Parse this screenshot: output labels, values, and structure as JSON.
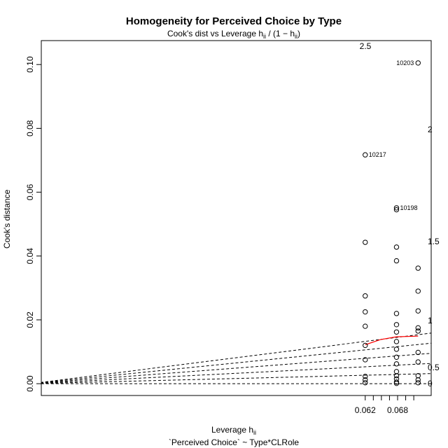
{
  "chart_data": {
    "type": "scatter",
    "title": "Homogeneity for Perceived Choice by Type",
    "subtitle": "Cook's dist vs Leverage  h",
    "subtitle_sub": "ii",
    "subtitle_formula_open": " / (1 − h",
    "subtitle_formula_close": ")",
    "xlabel": "Leverage  h",
    "xlabel_sub": "ii",
    "model_formula": "`Perceived Choice` ~ Type*CLRole",
    "ylabel": "Cook's distance",
    "xlim": [
      0,
      0.0725
    ],
    "ylim": [
      -0.004,
      0.1075
    ],
    "x_ticks": [
      0.062,
      0.068
    ],
    "x_tick_labels": [
      "0.062",
      "0.068"
    ],
    "x_minor_ticks": [
      0.0635,
      0.065,
      0.0665,
      0.0695,
      0.071
    ],
    "y_ticks": [
      0,
      0.02,
      0.04,
      0.06,
      0.08,
      0.1
    ],
    "y_tick_labels": [
      "0.00",
      "0.02",
      "0.04",
      "0.06",
      "0.08",
      "0.10"
    ],
    "grid": false,
    "contour_slopes": [
      {
        "label": "0",
        "slope": 0
      },
      {
        "label": "0.5",
        "slope": 0.5
      },
      {
        "label": "1",
        "slope": 1
      },
      {
        "label": "1.5",
        "slope": 1.5
      },
      {
        "label": "2",
        "slope": 2
      },
      {
        "label": "2.5",
        "slope": 2.5
      }
    ],
    "points": [
      {
        "x": 0.062,
        "y": 0.0443
      },
      {
        "x": 0.062,
        "y": 0.0275
      },
      {
        "x": 0.062,
        "y": 0.0225
      },
      {
        "x": 0.062,
        "y": 0.018
      },
      {
        "x": 0.062,
        "y": 0.012
      },
      {
        "x": 0.062,
        "y": 0.0075
      },
      {
        "x": 0.062,
        "y": 0.0023
      },
      {
        "x": 0.062,
        "y": 0.0012
      },
      {
        "x": 0.062,
        "y": 0.0003
      },
      {
        "x": 0.062,
        "y": 0.0717,
        "label": "10217"
      },
      {
        "x": 0.0678,
        "y": 0.0551,
        "label": "10198"
      },
      {
        "x": 0.0678,
        "y": 0.0545
      },
      {
        "x": 0.0678,
        "y": 0.0428
      },
      {
        "x": 0.0678,
        "y": 0.0385
      },
      {
        "x": 0.0678,
        "y": 0.022
      },
      {
        "x": 0.0678,
        "y": 0.0185
      },
      {
        "x": 0.0678,
        "y": 0.0162
      },
      {
        "x": 0.0678,
        "y": 0.0132
      },
      {
        "x": 0.0678,
        "y": 0.0108
      },
      {
        "x": 0.0678,
        "y": 0.0083
      },
      {
        "x": 0.0678,
        "y": 0.0062
      },
      {
        "x": 0.0678,
        "y": 0.0038
      },
      {
        "x": 0.0678,
        "y": 0.0025
      },
      {
        "x": 0.0678,
        "y": 0.0015
      },
      {
        "x": 0.0678,
        "y": 0.0005
      },
      {
        "x": 0.0678,
        "y": 0.0001
      },
      {
        "x": 0.0718,
        "y": 0.1005,
        "label": "10203"
      },
      {
        "x": 0.0718,
        "y": 0.0362
      },
      {
        "x": 0.0718,
        "y": 0.029
      },
      {
        "x": 0.0718,
        "y": 0.0228
      },
      {
        "x": 0.0718,
        "y": 0.0175
      },
      {
        "x": 0.0718,
        "y": 0.0165
      },
      {
        "x": 0.0718,
        "y": 0.0098
      },
      {
        "x": 0.0718,
        "y": 0.0068
      },
      {
        "x": 0.0718,
        "y": 0.0025
      },
      {
        "x": 0.0718,
        "y": 0.0012
      },
      {
        "x": 0.0718,
        "y": 0.0003
      }
    ],
    "smoother": {
      "color": "#ff0000",
      "x": [
        0.062,
        0.0648,
        0.0678,
        0.0718
      ],
      "y": [
        0.0122,
        0.0138,
        0.0147,
        0.0149
      ]
    }
  }
}
